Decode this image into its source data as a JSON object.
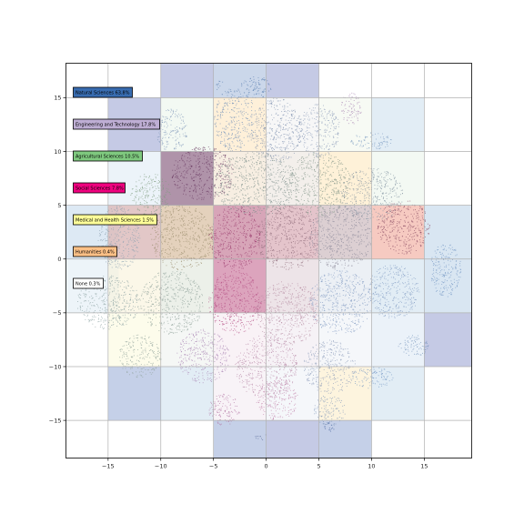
{
  "chart_data": {
    "type": "scatter",
    "title": "",
    "xlabel": "",
    "ylabel": "",
    "xlim": [
      -19,
      19.5
    ],
    "ylim": [
      -18.5,
      18.2
    ],
    "grid": true,
    "xticks": [
      -15,
      -10,
      -5,
      0,
      5,
      10,
      15
    ],
    "yticks": [
      15,
      10,
      5,
      0,
      -5,
      -10,
      -15
    ],
    "grid_cells": {
      "cell_size": 5,
      "cells": [
        {
          "x": -15,
          "y": 10,
          "color": "#9fa6d4",
          "alpha": 0.6
        },
        {
          "x": -10,
          "y": 15,
          "color": "#9fa6d4",
          "alpha": 0.6
        },
        {
          "x": -5,
          "y": 15,
          "color": "#a9bcdc",
          "alpha": 0.6
        },
        {
          "x": 0,
          "y": 15,
          "color": "#9fa6d4",
          "alpha": 0.6
        },
        {
          "x": -15,
          "y": 5,
          "color": "#e4eef6",
          "alpha": 0.7
        },
        {
          "x": -10,
          "y": 10,
          "color": "#eef6ee",
          "alpha": 0.7
        },
        {
          "x": -5,
          "y": 10,
          "color": "#fde9c9",
          "alpha": 0.7
        },
        {
          "x": 0,
          "y": 10,
          "color": "#f2f2f2",
          "alpha": 0.6
        },
        {
          "x": 5,
          "y": 10,
          "color": "#f4f8f0",
          "alpha": 0.7
        },
        {
          "x": 10,
          "y": 10,
          "color": "#dbe8f3",
          "alpha": 0.8
        },
        {
          "x": -15,
          "y": 0,
          "color": "#cfe0ef",
          "alpha": 0.7
        },
        {
          "x": -10,
          "y": 5,
          "color": "#6e3a62",
          "alpha": 0.55
        },
        {
          "x": -5,
          "y": 5,
          "color": "#f2e3cf",
          "alpha": 0.6
        },
        {
          "x": 0,
          "y": 5,
          "color": "#e8e0d8",
          "alpha": 0.5
        },
        {
          "x": 5,
          "y": 5,
          "color": "#fdebc8",
          "alpha": 0.7
        },
        {
          "x": 10,
          "y": 5,
          "color": "#eef6ee",
          "alpha": 0.7
        },
        {
          "x": -19,
          "y": 0,
          "color": "#cfe0ef",
          "alpha": 0.7
        },
        {
          "x": -15,
          "y": 0,
          "color": "#e8a59a",
          "alpha": 0.5
        },
        {
          "x": -10,
          "y": 0,
          "color": "#c9a37a",
          "alpha": 0.5
        },
        {
          "x": -5,
          "y": 0,
          "color": "#b04c72",
          "alpha": 0.5
        },
        {
          "x": 0,
          "y": 0,
          "color": "#c98a97",
          "alpha": 0.5
        },
        {
          "x": 5,
          "y": 0,
          "color": "#b9a0a6",
          "alpha": 0.5
        },
        {
          "x": 10,
          "y": 0,
          "color": "#f0a797",
          "alpha": 0.6
        },
        {
          "x": 15,
          "y": 0,
          "color": "#cfe0ef",
          "alpha": 0.8
        },
        {
          "x": -19,
          "y": -5,
          "color": "#e6eff7",
          "alpha": 0.7
        },
        {
          "x": -15,
          "y": -5,
          "color": "#f8f2d8",
          "alpha": 0.6
        },
        {
          "x": -10,
          "y": -5,
          "color": "#dfe6da",
          "alpha": 0.6
        },
        {
          "x": -5,
          "y": -5,
          "color": "#c05a86",
          "alpha": 0.55
        },
        {
          "x": 0,
          "y": -5,
          "color": "#dcc9d2",
          "alpha": 0.5
        },
        {
          "x": 5,
          "y": -5,
          "color": "#e0e6ee",
          "alpha": 0.6
        },
        {
          "x": 10,
          "y": -5,
          "color": "#dbe8f3",
          "alpha": 0.8
        },
        {
          "x": 15,
          "y": -5,
          "color": "#cfe0ef",
          "alpha": 0.8
        },
        {
          "x": -15,
          "y": -10,
          "color": "#fdfbe6",
          "alpha": 0.8
        },
        {
          "x": -10,
          "y": -10,
          "color": "#eef2ee",
          "alpha": 0.6
        },
        {
          "x": -5,
          "y": -10,
          "color": "#f4e6ee",
          "alpha": 0.5
        },
        {
          "x": 0,
          "y": -10,
          "color": "#eee6ee",
          "alpha": 0.5
        },
        {
          "x": 5,
          "y": -10,
          "color": "#eef2f6",
          "alpha": 0.6
        },
        {
          "x": 10,
          "y": -10,
          "color": "#e6eff7",
          "alpha": 0.8
        },
        {
          "x": 15,
          "y": -10,
          "color": "#9fa6d4",
          "alpha": 0.6
        },
        {
          "x": -15,
          "y": -15,
          "color": "#9fb0d8",
          "alpha": 0.6
        },
        {
          "x": -10,
          "y": -15,
          "color": "#dbe8f3",
          "alpha": 0.8
        },
        {
          "x": -5,
          "y": -15,
          "color": "#f2e8f0",
          "alpha": 0.5
        },
        {
          "x": 0,
          "y": -15,
          "color": "#eef2f6",
          "alpha": 0.6
        },
        {
          "x": 5,
          "y": -15,
          "color": "#fdf1d6",
          "alpha": 0.8
        },
        {
          "x": 10,
          "y": -15,
          "color": "#dbe8f3",
          "alpha": 0.8
        },
        {
          "x": -5,
          "y": -20,
          "color": "#9fb0d8",
          "alpha": 0.6
        },
        {
          "x": 0,
          "y": -20,
          "color": "#9fa6d4",
          "alpha": 0.6
        },
        {
          "x": 5,
          "y": -20,
          "color": "#9fb0d8",
          "alpha": 0.6
        }
      ]
    },
    "series": [
      {
        "name": "Natural Sciences 63.8%",
        "color": "#386cb0"
      },
      {
        "name": "Engineering and Technology 17.8%",
        "color": "#beaed4"
      },
      {
        "name": "Agricultural Sciences 10.5%",
        "color": "#7fc97f"
      },
      {
        "name": "Social Sciences 7.8%",
        "color": "#f0027f"
      },
      {
        "name": "Medical and Health Sciences 1.5%",
        "color": "#ffff99"
      },
      {
        "name": "Humanities 0.4%",
        "color": "#fdc086"
      },
      {
        "name": "None 0.3%",
        "color": "#ffffff"
      }
    ],
    "legend_placement": "upper-left, stacked vertically",
    "point_clusters": [
      {
        "cx": -3,
        "cy": 13,
        "rx": 2.0,
        "ry": 3.0,
        "color": "#6f8fb8"
      },
      {
        "cx": 1,
        "cy": 12,
        "rx": 2.5,
        "ry": 3.0,
        "color": "#7c8fae"
      },
      {
        "cx": -1,
        "cy": 16,
        "rx": 1.5,
        "ry": 1.0,
        "color": "#5a7fb0"
      },
      {
        "cx": 5,
        "cy": 12,
        "rx": 2.0,
        "ry": 2.5,
        "color": "#8a9ab8"
      },
      {
        "cx": 8,
        "cy": 14,
        "rx": 1.0,
        "ry": 1.5,
        "color": "#a57fb0"
      },
      {
        "cx": 10,
        "cy": 11,
        "rx": 2.0,
        "ry": 0.8,
        "color": "#7a99c0"
      },
      {
        "cx": -9,
        "cy": 12,
        "rx": 1.5,
        "ry": 2.0,
        "color": "#7d95b8"
      },
      {
        "cx": -6,
        "cy": 8,
        "rx": 3.0,
        "ry": 2.5,
        "color": "#6a3a62"
      },
      {
        "cx": -1,
        "cy": 7,
        "rx": 4.0,
        "ry": 3.0,
        "color": "#7b8d8a"
      },
      {
        "cx": 5,
        "cy": 7,
        "rx": 3.0,
        "ry": 3.0,
        "color": "#7f9386"
      },
      {
        "cx": 10,
        "cy": 6,
        "rx": 3.0,
        "ry": 2.5,
        "color": "#7d8f9e"
      },
      {
        "cx": -11,
        "cy": 6,
        "rx": 2.0,
        "ry": 2.0,
        "color": "#7e9b7e"
      },
      {
        "cx": -14,
        "cy": 2,
        "rx": 2.0,
        "ry": 3.0,
        "color": "#8aa0b0"
      },
      {
        "cx": -8,
        "cy": 2,
        "rx": 3.0,
        "ry": 3.0,
        "color": "#9a8c6c"
      },
      {
        "cx": -3,
        "cy": 2,
        "rx": 2.5,
        "ry": 3.0,
        "color": "#9a3a6c"
      },
      {
        "cx": 2,
        "cy": 2,
        "rx": 3.0,
        "ry": 3.0,
        "color": "#8f6b7a"
      },
      {
        "cx": 7,
        "cy": 2,
        "rx": 3.0,
        "ry": 3.0,
        "color": "#8c8a9a"
      },
      {
        "cx": 13,
        "cy": 3,
        "rx": 2.5,
        "ry": 2.5,
        "color": "#8a4a62"
      },
      {
        "cx": 17,
        "cy": -1,
        "rx": 1.5,
        "ry": 2.5,
        "color": "#6f93c2"
      },
      {
        "cx": -15,
        "cy": -4,
        "rx": 3.0,
        "ry": 2.5,
        "color": "#8aa0a0"
      },
      {
        "cx": -9,
        "cy": -4,
        "rx": 3.0,
        "ry": 3.0,
        "color": "#8fa29a"
      },
      {
        "cx": -3,
        "cy": -4,
        "rx": 2.5,
        "ry": 3.0,
        "color": "#b24a80"
      },
      {
        "cx": 2,
        "cy": -5,
        "rx": 3.0,
        "ry": 3.0,
        "color": "#b48aa0"
      },
      {
        "cx": 7,
        "cy": -4,
        "rx": 3.0,
        "ry": 3.0,
        "color": "#7f98c0"
      },
      {
        "cx": 12,
        "cy": -3,
        "rx": 2.5,
        "ry": 2.5,
        "color": "#7f9ac2"
      },
      {
        "cx": 14,
        "cy": -8,
        "rx": 1.5,
        "ry": 1.0,
        "color": "#6f8fb8"
      },
      {
        "cx": -12,
        "cy": -9,
        "rx": 2.0,
        "ry": 2.0,
        "color": "#8fa29a"
      },
      {
        "cx": -6,
        "cy": -9,
        "rx": 2.5,
        "ry": 2.5,
        "color": "#a57fb0"
      },
      {
        "cx": 0,
        "cy": -10,
        "rx": 3.0,
        "ry": 3.0,
        "color": "#b88aa8"
      },
      {
        "cx": 6,
        "cy": -10,
        "rx": 2.5,
        "ry": 2.5,
        "color": "#8a9ab8"
      },
      {
        "cx": 10,
        "cy": -11,
        "rx": 2.0,
        "ry": 1.0,
        "color": "#6f93c2"
      },
      {
        "cx": -4,
        "cy": -14,
        "rx": 1.5,
        "ry": 1.5,
        "color": "#b070a0"
      },
      {
        "cx": 1,
        "cy": -13,
        "rx": 2.0,
        "ry": 2.0,
        "color": "#c080a8"
      },
      {
        "cx": 6,
        "cy": -14,
        "rx": 1.5,
        "ry": 1.5,
        "color": "#7d95b8"
      },
      {
        "cx": 6,
        "cy": -15.5,
        "rx": 0.5,
        "ry": 0.5,
        "color": "#3a5a9a"
      },
      {
        "cx": -0.5,
        "cy": -16.5,
        "rx": 0.6,
        "ry": 0.3,
        "color": "#5a6a9a"
      },
      {
        "cx": -4.5,
        "cy": 16.2,
        "rx": 0.4,
        "ry": 0.5,
        "color": "#5a7fb0"
      }
    ]
  }
}
